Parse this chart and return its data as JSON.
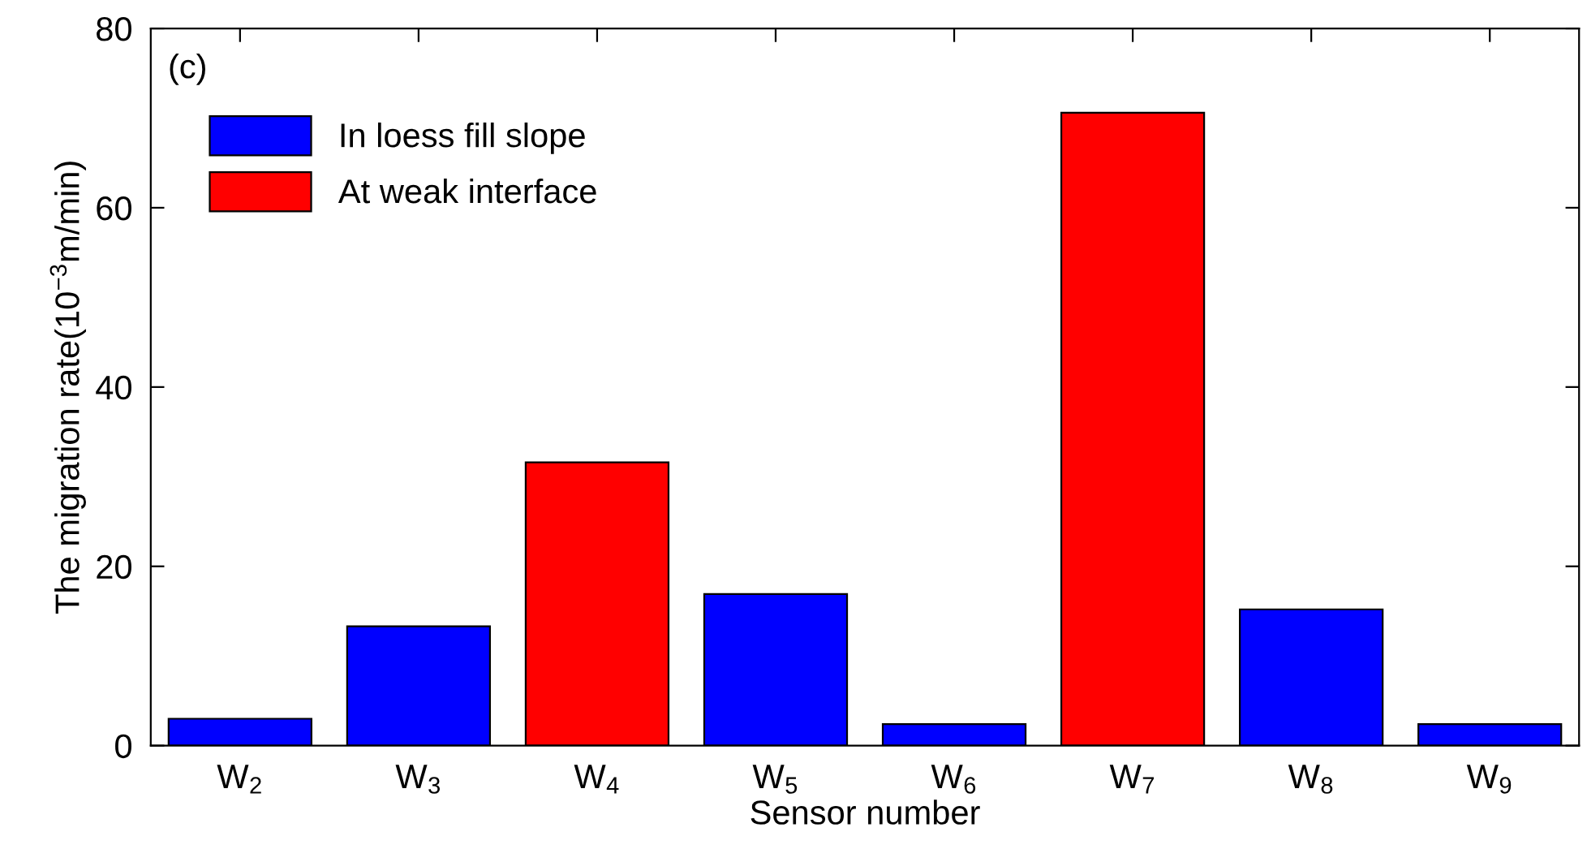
{
  "chart_data": {
    "type": "bar",
    "xlabel": "Sensor number",
    "ylabel": "The migration rate(10$^{−3}$m/min)",
    "categories": [
      "W$_{2}$",
      "W$_{3}$",
      "W$_{4}$",
      "W$_{5}$",
      "W$_{6}$",
      "W$_{7}$",
      "W$_{8}$",
      "W$_{9}$"
    ],
    "series": [
      {
        "name": "In loess fill slope",
        "color": "#0000ff",
        "values": [
          3.0,
          13.3,
          null,
          16.9,
          2.4,
          null,
          15.2,
          2.4
        ]
      },
      {
        "name": "At weak interface",
        "color": "#ff0000",
        "values": [
          null,
          null,
          31.6,
          null,
          null,
          70.6,
          null,
          null
        ]
      }
    ],
    "ylim": [
      0,
      80
    ],
    "yticks": [
      0,
      20,
      40,
      60,
      80
    ],
    "grid": false,
    "legend": "top left",
    "annotations": [
      "(c)"
    ]
  }
}
